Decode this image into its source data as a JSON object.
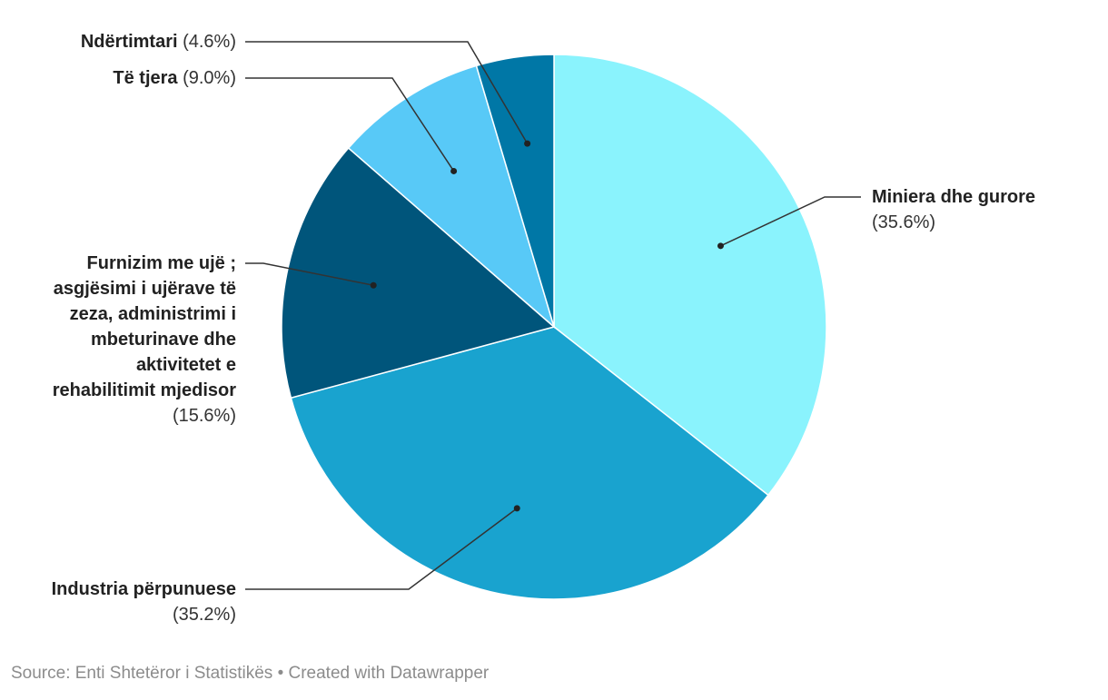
{
  "chart_data": {
    "type": "pie",
    "title": "",
    "slices": [
      {
        "name": "Miniera dhe gurore",
        "name_lines": [
          "Miniera dhe gurore"
        ],
        "value": 35.6,
        "value_label": "(35.6%)",
        "color": "#8af3fd"
      },
      {
        "name": "Industria përpunuese",
        "name_lines": [
          "Industria përpunuese"
        ],
        "value": 35.2,
        "value_label": "(35.2%)",
        "color": "#19a3cf"
      },
      {
        "name": "Furnizim me ujë ; asgjësimi i ujërave të zeza, administrimi i mbeturinave dhe aktivitetet e rehabilitimit mjedisor",
        "name_lines": [
          "Furnizim me ujë ;",
          "asgjësimi i ujërave të",
          "zeza, administrimi i",
          "mbeturinave dhe",
          "aktivitetet e",
          "rehabilitimit mjedisor"
        ],
        "value": 15.6,
        "value_label": "(15.6%)",
        "color": "#00557b"
      },
      {
        "name": "Të tjera",
        "name_lines": [
          "Të tjera"
        ],
        "value": 9.0,
        "value_label": "(9.0%)",
        "color": "#58c9f7"
      },
      {
        "name": "Ndërtimtari",
        "name_lines": [
          "Ndërtimtari"
        ],
        "value": 4.6,
        "value_label": "(4.6%)",
        "color": "#0077a6"
      }
    ],
    "start_angle_deg": 0,
    "direction": "clockwise"
  },
  "footer": {
    "source": "Source: Enti Shtetëror i Statistikës • Created with Datawrapper"
  }
}
